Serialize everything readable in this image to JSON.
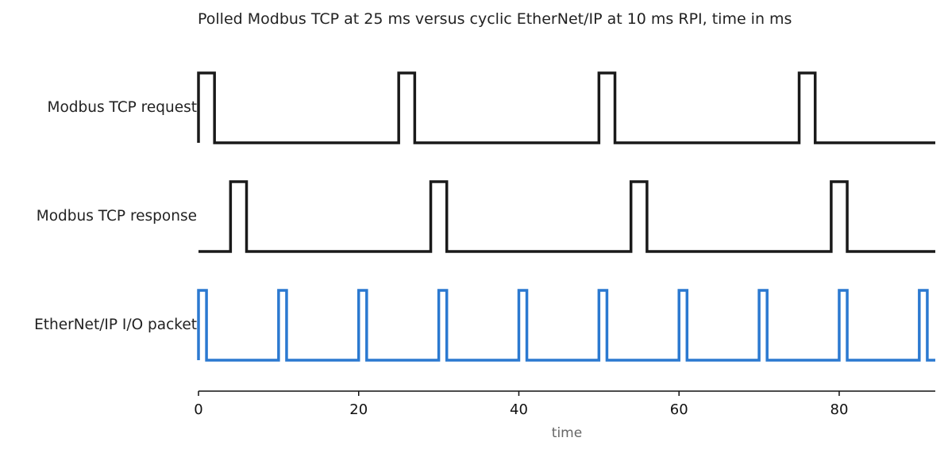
{
  "chart_data": {
    "type": "line",
    "title": "Polled Modbus TCP at 25 ms versus cyclic EtherNet/IP at 10 ms RPI, time in ms",
    "xlabel": "time",
    "xlim": [
      0,
      92
    ],
    "x_ticks": [
      0,
      20,
      40,
      60,
      80
    ],
    "pulse_width_ms": 1,
    "series": [
      {
        "name": "Modbus TCP request",
        "color": "#1a1a1a",
        "pulse_starts": [
          0,
          25,
          50,
          75
        ],
        "pulse_width": 2
      },
      {
        "name": "Modbus TCP response",
        "color": "#1a1a1a",
        "pulse_starts": [
          4,
          29,
          54,
          79
        ],
        "pulse_width": 2
      },
      {
        "name": "EtherNet/IP I/O packet",
        "color": "#2b79d0",
        "pulse_starts": [
          0,
          10,
          20,
          30,
          40,
          50,
          60,
          70,
          80,
          90
        ],
        "pulse_width": 1
      }
    ]
  }
}
